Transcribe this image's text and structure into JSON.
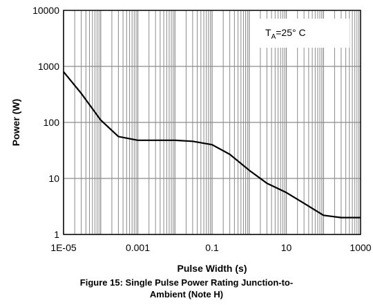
{
  "chart_data": {
    "type": "line",
    "xscale": "log",
    "yscale": "log",
    "xlim": [
      1e-05,
      1000
    ],
    "ylim": [
      1,
      10000
    ],
    "xlabel": "Pulse Width (s)",
    "ylabel": "Power (W)",
    "x_tick_labels": [
      "1E-05",
      "0.001",
      "0.1",
      "10",
      "1000"
    ],
    "x_tick_values": [
      1e-05,
      0.001,
      0.1,
      10,
      1000
    ],
    "y_tick_labels": [
      "1",
      "10",
      "100",
      "1000",
      "10000"
    ],
    "y_tick_values": [
      1,
      10,
      100,
      1000,
      10000
    ],
    "grid": true,
    "annotation": {
      "main": "T",
      "sub": "A",
      "rest": "=25° C"
    },
    "series": [
      {
        "color": "#000000",
        "x": [
          1e-05,
          3e-05,
          0.0001,
          0.0003,
          0.001,
          0.003,
          0.01,
          0.03,
          0.1,
          0.3,
          1,
          3,
          10,
          30,
          100,
          300,
          1000
        ],
        "y": [
          800,
          330,
          110,
          56,
          48,
          48,
          48,
          46,
          40,
          27,
          14,
          8.2,
          5.6,
          3.6,
          2.2,
          2.0,
          2.0
        ]
      }
    ]
  },
  "caption": {
    "line1": "Figure 15: Single Pulse Power Rating Junction-to-",
    "line2": "Ambient (Note H)"
  }
}
